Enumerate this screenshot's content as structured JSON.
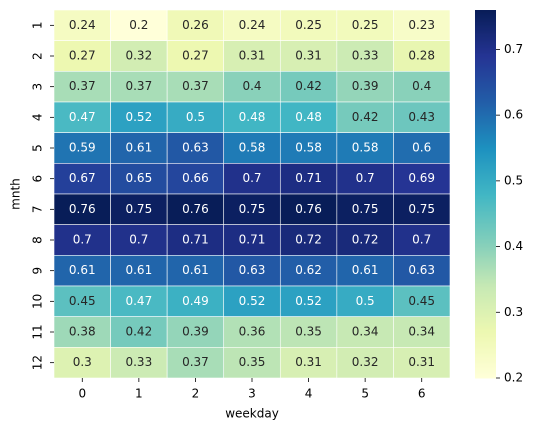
{
  "chart_data": {
    "type": "heatmap",
    "x_label": "weekday",
    "y_label": "mnth",
    "x": [
      0,
      1,
      2,
      3,
      4,
      5,
      6
    ],
    "y": [
      1,
      2,
      3,
      4,
      5,
      6,
      7,
      8,
      9,
      10,
      11,
      12
    ],
    "values": [
      [
        0.24,
        0.2,
        0.26,
        0.24,
        0.25,
        0.25,
        0.23
      ],
      [
        0.27,
        0.32,
        0.27,
        0.31,
        0.31,
        0.33,
        0.28
      ],
      [
        0.37,
        0.37,
        0.37,
        0.4,
        0.42,
        0.39,
        0.4
      ],
      [
        0.47,
        0.52,
        0.5,
        0.48,
        0.48,
        0.42,
        0.43
      ],
      [
        0.59,
        0.61,
        0.63,
        0.58,
        0.58,
        0.58,
        0.6
      ],
      [
        0.67,
        0.65,
        0.66,
        0.7,
        0.71,
        0.7,
        0.69
      ],
      [
        0.76,
        0.75,
        0.76,
        0.75,
        0.76,
        0.75,
        0.75
      ],
      [
        0.7,
        0.7,
        0.71,
        0.71,
        0.72,
        0.72,
        0.7
      ],
      [
        0.61,
        0.61,
        0.61,
        0.63,
        0.62,
        0.61,
        0.63
      ],
      [
        0.45,
        0.47,
        0.49,
        0.52,
        0.52,
        0.5,
        0.45
      ],
      [
        0.38,
        0.42,
        0.39,
        0.36,
        0.35,
        0.34,
        0.34
      ],
      [
        0.3,
        0.33,
        0.37,
        0.35,
        0.31,
        0.32,
        0.31
      ]
    ],
    "colormap": "YlGnBu",
    "clim": [
      0.2,
      0.76
    ],
    "cticks": [
      0.2,
      0.3,
      0.4,
      0.5,
      0.6,
      0.7
    ]
  }
}
